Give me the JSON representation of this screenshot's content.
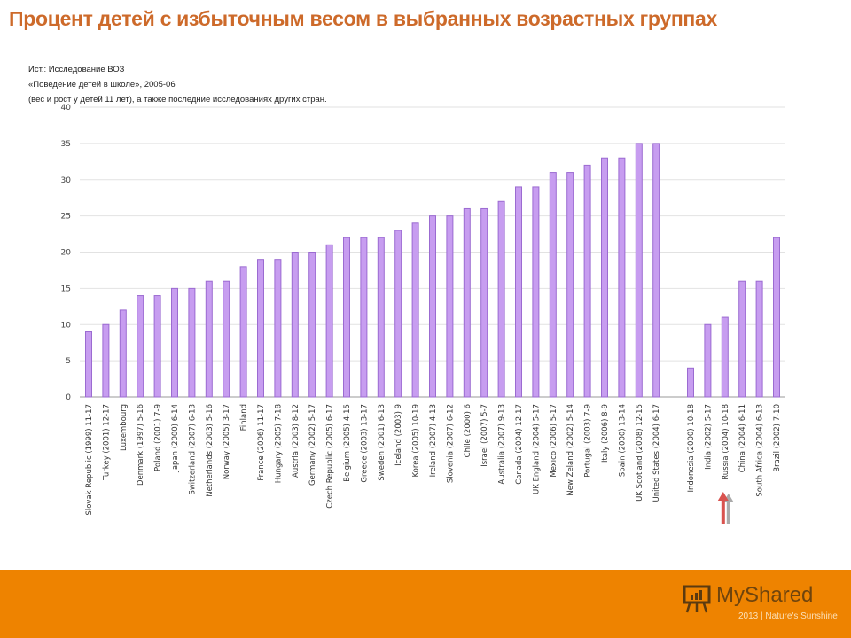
{
  "title": "Процент детей с избыточным весом в выбранных возрастных группах",
  "source_lines": [
    "Ист.: Исследование ВОЗ",
    "«Поведение детей в школе», 2005-06",
    "(вес и рост у детей 11 лет), а также последние  исследованиях  других стран."
  ],
  "chart_data": {
    "type": "bar",
    "title": "",
    "xlabel": "",
    "ylabel": "",
    "ylim": [
      0,
      40
    ],
    "yticks": [
      0,
      5,
      10,
      15,
      20,
      25,
      30,
      35,
      40
    ],
    "grid": true,
    "bar_color": "#c79df0",
    "bar_edge_color": "#9b6bd1",
    "categories": [
      "Slovak Republic (1999) 11-17",
      "Turkey (2001) 12-17",
      "Luxembourg",
      "Denmark (1997) 5-16",
      "Poland (2001) 7-9",
      "Japan (2000) 6-14",
      "Switzerland (2007) 6-13",
      "Netherlands (2003) 5-16",
      "Norway (2005) 3-17",
      "Finland",
      "France (2006) 11-17",
      "Hungary (2005) 7-18",
      "Austria (2003) 8-12",
      "Germany (2002) 5-17",
      "Czech Republic (2005) 6-17",
      "Belgium (2005) 4-15",
      "Greece (2003) 13-17",
      "Sweden (2001) 6-13",
      "Iceland (2003) 9",
      "Korea (2005) 10-19",
      "Ireland (2007) 4-13",
      "Slovenia (2007) 6-12",
      "Chile (2000) 6",
      "Israel (2007) 5-7",
      "Australia (2007) 9-13",
      "Canada (2004) 12-17",
      "UK England (2004) 5-17",
      "Mexico (2006) 5-17",
      "New Zeland (2002) 5-14",
      "Portugal (2003) 7-9",
      "Italy (2006) 8-9",
      "Spain (2000) 13-14",
      "UK Scotland (2008) 12-15",
      "United States (2004) 6-17",
      "",
      "Indonesia (2000) 10-18",
      "India (2002) 5-17",
      "Russia (2004) 10-18",
      "China (2004) 6-11",
      "South Africa (2004) 6-13",
      "Brazil (2002) 7-10"
    ],
    "values": [
      9,
      10,
      12,
      14,
      14,
      15,
      15,
      16,
      16,
      18,
      19,
      19,
      20,
      20,
      21,
      22,
      22,
      22,
      23,
      24,
      25,
      25,
      26,
      26,
      27,
      29,
      29,
      31,
      31,
      32,
      33,
      33,
      35,
      35,
      null,
      4,
      10,
      11,
      16,
      16,
      22
    ],
    "annotations": [
      {
        "type": "arrow",
        "category": "Russia (2004) 10-18",
        "color": "#d9534f"
      }
    ]
  },
  "footer": {
    "color": "#ee8300",
    "logo_text": "MyShared",
    "logo_sub": "2013 | Nature's Sunshine"
  }
}
